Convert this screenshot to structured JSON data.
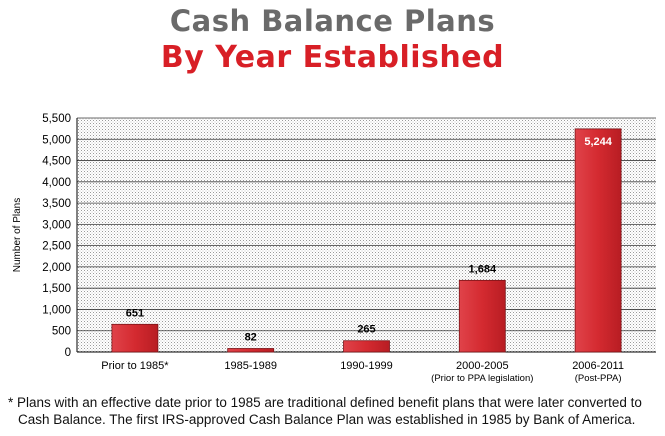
{
  "title": "Cash Balance Plans",
  "subtitle": "By Year Established",
  "chart_data": {
    "type": "bar",
    "categories": [
      "Prior to 1985*",
      "1985-1989",
      "1990-1999",
      "2000-2005",
      "2006-2011"
    ],
    "category_sublabels": [
      "",
      "",
      "",
      "(Prior to PPA legislation)",
      "(Post-PPA)"
    ],
    "values": [
      651,
      82,
      265,
      1684,
      5244
    ],
    "data_labels": [
      "651",
      "82",
      "265",
      "1,684",
      "5,244"
    ],
    "ylabel": "Number of Plans",
    "ylim": [
      0,
      5500
    ],
    "yticks": [
      0,
      500,
      1000,
      1500,
      2000,
      2500,
      3000,
      3500,
      4000,
      4500,
      5000,
      5500
    ],
    "ytick_labels": [
      "0",
      "500",
      "1,000",
      "1,500",
      "2,000",
      "2,500",
      "3,000",
      "3,500",
      "4,000",
      "4,500",
      "5,000",
      "5,500"
    ],
    "grid": true,
    "bar_color": "#d42a30"
  },
  "footnote": {
    "line1": "* Plans with an effective date prior to 1985 are traditional defined benefit plans that were later converted to",
    "line2": "Cash Balance. The first IRS-approved Cash Balance Plan was established in 1985 by Bank of America."
  }
}
